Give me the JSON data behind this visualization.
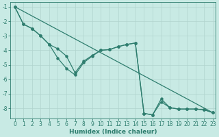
{
  "xlabel": "Humidex (Indice chaleur)",
  "background_color": "#c8eae4",
  "grid_color": "#b0d4ce",
  "line_color": "#2e7d6e",
  "xlim": [
    -0.5,
    23.3
  ],
  "ylim": [
    -8.7,
    -0.7
  ],
  "xticks": [
    0,
    1,
    2,
    3,
    4,
    5,
    6,
    7,
    8,
    9,
    10,
    11,
    12,
    13,
    14,
    15,
    16,
    17,
    18,
    19,
    20,
    21,
    22,
    23
  ],
  "yticks": [
    -1,
    -2,
    -3,
    -4,
    -5,
    -6,
    -7,
    -8
  ],
  "line1_x": [
    0,
    1,
    2,
    3,
    4,
    5,
    6,
    7,
    8,
    9,
    10,
    11,
    12,
    13,
    14,
    15,
    16,
    17,
    18,
    19,
    20,
    21,
    22,
    23
  ],
  "line1_y": [
    -1.0,
    -2.2,
    -2.5,
    -3.0,
    -3.6,
    -3.9,
    -4.4,
    -5.55,
    -4.75,
    -4.35,
    -4.0,
    -3.95,
    -3.75,
    -3.6,
    -3.5,
    -8.35,
    -8.45,
    -7.35,
    -7.95,
    -8.05,
    -8.05,
    -8.05,
    -8.1,
    -8.3
  ],
  "line2_x": [
    0,
    1,
    2,
    3,
    4,
    5,
    6,
    7,
    8,
    9,
    10,
    11,
    12,
    13,
    14,
    15,
    16,
    17,
    18,
    19,
    20,
    21,
    22,
    23
  ],
  "line2_y": [
    -1.0,
    -2.2,
    -2.5,
    -3.0,
    -3.6,
    -4.55,
    -5.25,
    -5.7,
    -4.85,
    -4.4,
    -4.0,
    -3.95,
    -3.75,
    -3.6,
    -3.5,
    -8.35,
    -8.45,
    -7.55,
    -7.95,
    -8.05,
    -8.05,
    -8.05,
    -8.1,
    -8.3
  ],
  "line3_x": [
    0,
    23
  ],
  "line3_y": [
    -1.0,
    -8.3
  ],
  "markersize": 2.2,
  "linewidth": 0.9,
  "xlabel_fontsize": 6.5,
  "tick_fontsize": 5.5
}
